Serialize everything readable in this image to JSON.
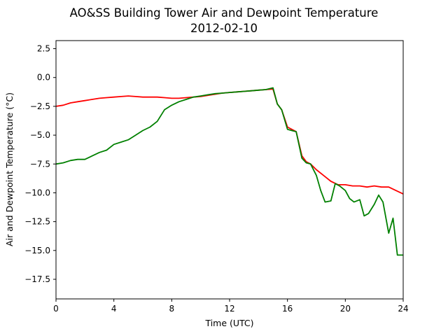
{
  "chart_data": {
    "type": "line",
    "title": "AO&SS Building Tower Air and Dewpoint Temperature",
    "subtitle": "2012-02-10",
    "xlabel": "Time (UTC)",
    "ylabel": "Air and Dewpoint Temperature (°C)",
    "xlim": [
      0,
      24
    ],
    "ylim": [
      -19.2,
      3.2
    ],
    "xticks": [
      0,
      4,
      8,
      12,
      16,
      20,
      24
    ],
    "xtick_labels": [
      "0",
      "4",
      "8",
      "12",
      "16",
      "20",
      "24"
    ],
    "yticks": [
      2.5,
      0.0,
      -2.5,
      -5.0,
      -7.5,
      -10.0,
      -12.5,
      -15.0,
      -17.5
    ],
    "ytick_labels": [
      "2.5",
      "0.0",
      "−2.5",
      "−5.0",
      "−7.5",
      "−10.0",
      "−12.5",
      "−15.0",
      "−17.5"
    ],
    "grid": false,
    "series": [
      {
        "color": "#ff0000",
        "x": [
          0,
          0.5,
          1,
          1.5,
          2,
          2.5,
          3,
          3.5,
          4,
          4.5,
          5,
          5.5,
          6,
          6.5,
          7,
          7.5,
          8,
          8.5,
          9,
          9.5,
          10,
          10.5,
          11,
          11.5,
          12,
          12.5,
          13,
          13.5,
          14,
          14.5,
          15,
          15.3,
          15.6,
          16,
          16.3,
          16.6,
          17,
          17.3,
          17.6,
          18,
          18.5,
          19,
          19.5,
          20,
          20.5,
          21,
          21.5,
          22,
          22.5,
          23,
          23.5,
          24
        ],
        "y": [
          -2.5,
          -2.4,
          -2.2,
          -2.1,
          -2.0,
          -1.9,
          -1.8,
          -1.75,
          -1.7,
          -1.65,
          -1.6,
          -1.65,
          -1.7,
          -1.7,
          -1.7,
          -1.75,
          -1.8,
          -1.8,
          -1.75,
          -1.7,
          -1.65,
          -1.55,
          -1.45,
          -1.35,
          -1.3,
          -1.25,
          -1.2,
          -1.15,
          -1.1,
          -1.05,
          -1.0,
          -2.3,
          -2.8,
          -4.3,
          -4.5,
          -4.7,
          -6.8,
          -7.3,
          -7.5,
          -8.0,
          -8.5,
          -9.0,
          -9.3,
          -9.3,
          -9.4,
          -9.4,
          -9.5,
          -9.4,
          -9.5,
          -9.5,
          -9.8,
          -10.1
        ]
      },
      {
        "color": "#008000",
        "x": [
          0,
          0.5,
          1,
          1.5,
          2,
          2.5,
          3,
          3.5,
          4,
          4.5,
          5,
          5.5,
          6,
          6.5,
          7,
          7.5,
          8,
          8.5,
          9,
          9.5,
          10,
          10.5,
          11,
          11.5,
          12,
          12.5,
          13,
          13.5,
          14,
          14.5,
          15,
          15.3,
          15.6,
          16,
          16.3,
          16.6,
          17,
          17.3,
          17.6,
          18,
          18.3,
          18.6,
          19,
          19.3,
          19.6,
          20,
          20.3,
          20.6,
          21,
          21.3,
          21.6,
          22,
          22.3,
          22.6,
          23,
          23.3,
          23.6,
          24
        ],
        "y": [
          -7.5,
          -7.4,
          -7.2,
          -7.1,
          -7.1,
          -6.8,
          -6.5,
          -6.3,
          -5.8,
          -5.6,
          -5.4,
          -5.0,
          -4.6,
          -4.3,
          -3.8,
          -2.8,
          -2.4,
          -2.1,
          -1.9,
          -1.7,
          -1.6,
          -1.5,
          -1.4,
          -1.35,
          -1.3,
          -1.25,
          -1.2,
          -1.15,
          -1.1,
          -1.05,
          -0.9,
          -2.3,
          -2.8,
          -4.5,
          -4.6,
          -4.7,
          -7.0,
          -7.4,
          -7.5,
          -8.5,
          -9.8,
          -10.8,
          -10.7,
          -9.2,
          -9.4,
          -9.8,
          -10.5,
          -10.8,
          -10.6,
          -12.0,
          -11.8,
          -11.0,
          -10.2,
          -10.8,
          -13.5,
          -12.2,
          -15.4,
          -15.4
        ]
      }
    ]
  }
}
